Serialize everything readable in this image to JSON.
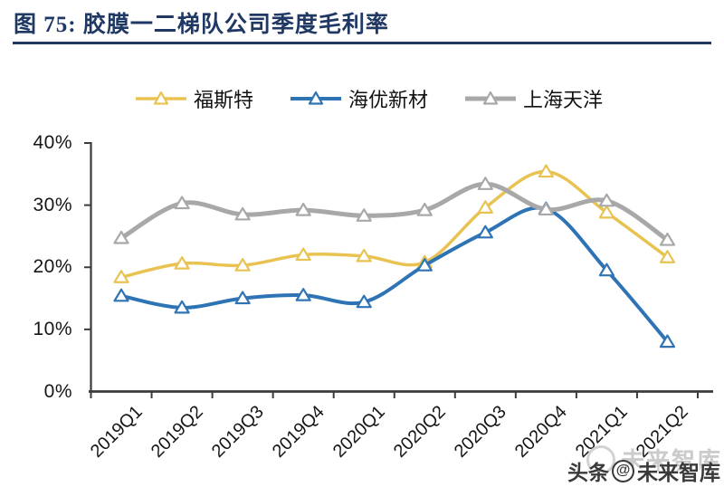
{
  "header": {
    "title": "图 75:  胶膜一二梯队公司季度毛利率",
    "accent_color": "#1F3864"
  },
  "chart_data": {
    "type": "line",
    "title": "胶膜一二梯队公司季度毛利率",
    "categories": [
      "2019Q1",
      "2019Q2",
      "2019Q3",
      "2019Q4",
      "2020Q1",
      "2020Q2",
      "2020Q3",
      "2020Q4",
      "2021Q1",
      "2021Q2"
    ],
    "series": [
      {
        "name": "福斯特",
        "color": "#E9C351",
        "line_width": 3.5,
        "marker": "triangle-open",
        "values": [
          18.4,
          20.6,
          20.3,
          22.0,
          21.8,
          20.8,
          29.6,
          35.4,
          28.8,
          21.6
        ]
      },
      {
        "name": "海优新材",
        "color": "#2E74B5",
        "line_width": 4,
        "marker": "triangle-open",
        "values": [
          15.4,
          13.5,
          15.0,
          15.5,
          14.4,
          20.3,
          25.6,
          29.4,
          19.5,
          8.0
        ]
      },
      {
        "name": "上海天洋",
        "color": "#A8A8A8",
        "line_width": 5,
        "marker": "triangle-open",
        "values": [
          24.7,
          30.3,
          28.5,
          29.2,
          28.3,
          29.2,
          33.4,
          29.3,
          30.7,
          24.4
        ]
      }
    ],
    "ylim": [
      0,
      40
    ],
    "ytick_step": 10,
    "ytick_format": "percent",
    "grid": false,
    "smooth": true,
    "legend_position": "top",
    "axis_color": "#3b3b3b",
    "tick_label_color": "#161616"
  },
  "watermark": {
    "prefix": "头条",
    "at": "@",
    "name": "未来智库",
    "ghost": "未来智库"
  }
}
